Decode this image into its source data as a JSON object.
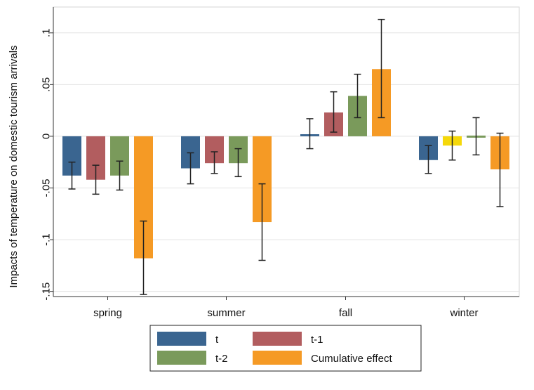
{
  "chart_data": {
    "type": "bar",
    "title": "",
    "xlabel": "",
    "ylabel": "Impacts of temperature on domestic tourism arrivals",
    "ylim": [
      -0.155,
      0.125
    ],
    "yticks": [
      0.1,
      0.05,
      0,
      -0.05,
      -0.1,
      -0.15
    ],
    "ytick_labels": [
      ".1",
      ".05",
      "0",
      "-.05",
      "-.1",
      "-.15"
    ],
    "grid": true,
    "legend_position": "bottom",
    "categories": [
      "spring",
      "summer",
      "fall",
      "winter"
    ],
    "series": [
      {
        "name": "t",
        "color": "#3a6590",
        "values": [
          -0.038,
          -0.031,
          0.002,
          -0.023
        ],
        "ci_low": [
          -0.051,
          -0.046,
          -0.012,
          -0.036
        ],
        "ci_high": [
          -0.025,
          -0.016,
          0.017,
          -0.009
        ]
      },
      {
        "name": "t-1",
        "color": "#b25d5f",
        "values": [
          -0.042,
          -0.026,
          0.023,
          -0.009
        ],
        "ci_low": [
          -0.056,
          -0.036,
          0.004,
          -0.023
        ],
        "ci_high": [
          -0.028,
          -0.015,
          0.043,
          0.005
        ],
        "overrides": [
          null,
          null,
          null,
          "#f5d80a"
        ]
      },
      {
        "name": "t-2",
        "color": "#7a9a5b",
        "values": [
          -0.038,
          -0.026,
          0.039,
          0.0
        ],
        "ci_low": [
          -0.052,
          -0.039,
          0.018,
          -0.018
        ],
        "ci_high": [
          -0.024,
          -0.012,
          0.06,
          0.018
        ]
      },
      {
        "name": "Cumulative effect",
        "color": "#f59a25",
        "values": [
          -0.118,
          -0.083,
          0.065,
          -0.032
        ],
        "ci_low": [
          -0.153,
          -0.12,
          0.018,
          -0.068
        ],
        "ci_high": [
          -0.082,
          -0.046,
          0.113,
          0.003
        ]
      }
    ]
  }
}
